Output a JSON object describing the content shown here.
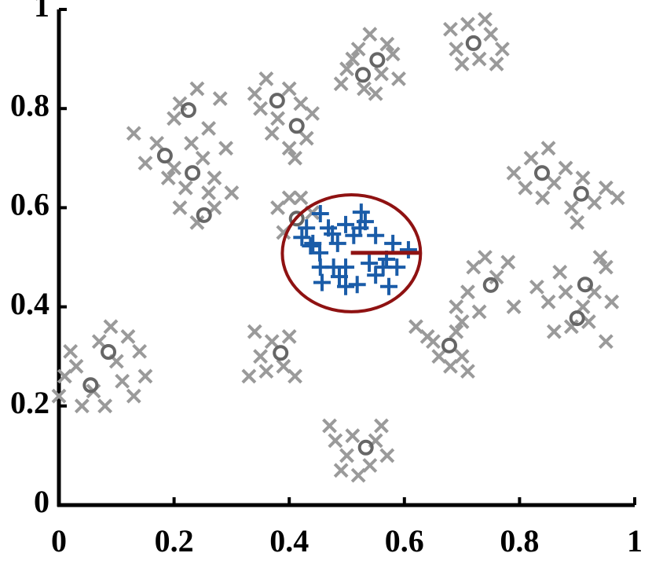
{
  "chart_data": {
    "type": "scatter",
    "xlim": [
      0,
      1
    ],
    "ylim": [
      0,
      1
    ],
    "xticks": [
      0,
      0.2,
      0.4,
      0.6,
      0.8,
      1
    ],
    "yticks": [
      0,
      0.2,
      0.4,
      0.6,
      0.8,
      1
    ],
    "series": [
      {
        "marker": "x",
        "color": "#9a9a9a",
        "x": [
          0.13,
          0.15,
          0.17,
          0.2,
          0.21,
          0.24,
          0.26,
          0.28,
          0.2,
          0.22,
          0.25,
          0.27,
          0.29,
          0.3,
          0.21,
          0.24,
          0.27,
          0.19,
          0.23,
          0.26,
          0.34,
          0.36,
          0.38,
          0.4,
          0.42,
          0.44,
          0.37,
          0.4,
          0.43,
          0.35,
          0.41,
          0.49,
          0.5,
          0.52,
          0.54,
          0.56,
          0.58,
          0.59,
          0.53,
          0.55,
          0.51,
          0.57,
          0.68,
          0.69,
          0.71,
          0.73,
          0.75,
          0.77,
          0.74,
          0.7,
          0.76,
          0.79,
          0.81,
          0.82,
          0.85,
          0.86,
          0.88,
          0.89,
          0.91,
          0.93,
          0.95,
          0.97,
          0.9,
          0.84,
          0.38,
          0.39,
          0.42,
          0.44,
          0.4,
          0.69,
          0.71,
          0.72,
          0.74,
          0.76,
          0.78,
          0.79,
          0.73,
          0.7,
          0.83,
          0.85,
          0.87,
          0.88,
          0.89,
          0.91,
          0.93,
          0.95,
          0.96,
          0.92,
          0.86,
          0.95,
          0.94,
          0.62,
          0.64,
          0.66,
          0.68,
          0.7,
          0.71,
          0.65,
          0.69,
          0.01,
          0.0,
          0.03,
          0.04,
          0.06,
          0.07,
          0.09,
          0.1,
          0.12,
          0.14,
          0.15,
          0.08,
          0.11,
          0.02,
          0.13,
          0.34,
          0.35,
          0.37,
          0.39,
          0.4,
          0.41,
          0.36,
          0.33,
          0.47,
          0.48,
          0.5,
          0.51,
          0.54,
          0.55,
          0.57,
          0.56,
          0.49,
          0.52
        ],
        "values": [
          0.75,
          0.69,
          0.73,
          0.78,
          0.81,
          0.84,
          0.76,
          0.82,
          0.68,
          0.64,
          0.7,
          0.66,
          0.72,
          0.63,
          0.6,
          0.57,
          0.6,
          0.66,
          0.73,
          0.63,
          0.83,
          0.86,
          0.78,
          0.84,
          0.81,
          0.79,
          0.75,
          0.72,
          0.74,
          0.8,
          0.7,
          0.85,
          0.88,
          0.92,
          0.95,
          0.87,
          0.91,
          0.86,
          0.84,
          0.83,
          0.9,
          0.93,
          0.96,
          0.92,
          0.97,
          0.9,
          0.95,
          0.92,
          0.98,
          0.89,
          0.89,
          0.67,
          0.64,
          0.7,
          0.72,
          0.65,
          0.68,
          0.6,
          0.66,
          0.61,
          0.64,
          0.62,
          0.57,
          0.62,
          0.6,
          0.55,
          0.62,
          0.59,
          0.62,
          0.4,
          0.43,
          0.48,
          0.5,
          0.46,
          0.49,
          0.4,
          0.39,
          0.37,
          0.44,
          0.41,
          0.47,
          0.43,
          0.36,
          0.4,
          0.43,
          0.48,
          0.41,
          0.37,
          0.35,
          0.33,
          0.5,
          0.36,
          0.34,
          0.3,
          0.28,
          0.3,
          0.27,
          0.33,
          0.35,
          0.26,
          0.22,
          0.28,
          0.2,
          0.23,
          0.33,
          0.36,
          0.29,
          0.34,
          0.31,
          0.26,
          0.2,
          0.25,
          0.31,
          0.22,
          0.35,
          0.3,
          0.33,
          0.28,
          0.34,
          0.26,
          0.27,
          0.26,
          0.16,
          0.13,
          0.1,
          0.14,
          0.08,
          0.13,
          0.1,
          0.16,
          0.07,
          0.06
        ]
      },
      {
        "marker": "o",
        "color": "#666666",
        "x": [
          0.225,
          0.184,
          0.232,
          0.252,
          0.379,
          0.413,
          0.528,
          0.553,
          0.72,
          0.839,
          0.907,
          0.413,
          0.75,
          0.914,
          0.9,
          0.678,
          0.086,
          0.055,
          0.385,
          0.533
        ],
        "values": [
          0.797,
          0.705,
          0.67,
          0.585,
          0.816,
          0.765,
          0.868,
          0.898,
          0.932,
          0.67,
          0.628,
          0.578,
          0.444,
          0.445,
          0.377,
          0.322,
          0.309,
          0.242,
          0.307,
          0.116
        ]
      },
      {
        "marker": "+",
        "color": "#1a5ca8",
        "x": [
          0.43,
          0.454,
          0.468,
          0.498,
          0.525,
          0.523,
          0.532,
          0.437,
          0.453,
          0.422,
          0.484,
          0.58,
          0.569,
          0.607,
          0.477,
          0.454,
          0.457,
          0.498,
          0.487,
          0.539,
          0.55,
          0.518,
          0.498,
          0.573,
          0.563,
          0.587,
          0.441,
          0.475,
          0.55,
          0.512
        ],
        "values": [
          0.559,
          0.588,
          0.559,
          0.566,
          0.591,
          0.559,
          0.572,
          0.523,
          0.509,
          0.54,
          0.528,
          0.528,
          0.496,
          0.515,
          0.48,
          0.48,
          0.449,
          0.48,
          0.461,
          0.488,
          0.464,
          0.445,
          0.441,
          0.441,
          0.48,
          0.48,
          0.528,
          0.547,
          0.544,
          0.544
        ]
      },
      {
        "marker": "line",
        "color": "#8f1212",
        "x": [
          0.507,
          0.629
        ],
        "values": [
          0.509,
          0.509
        ]
      }
    ],
    "ellipse": {
      "cx": 0.508,
      "cy": 0.508,
      "rx": 0.12,
      "ry": 0.118,
      "color": "#8f1212"
    }
  }
}
